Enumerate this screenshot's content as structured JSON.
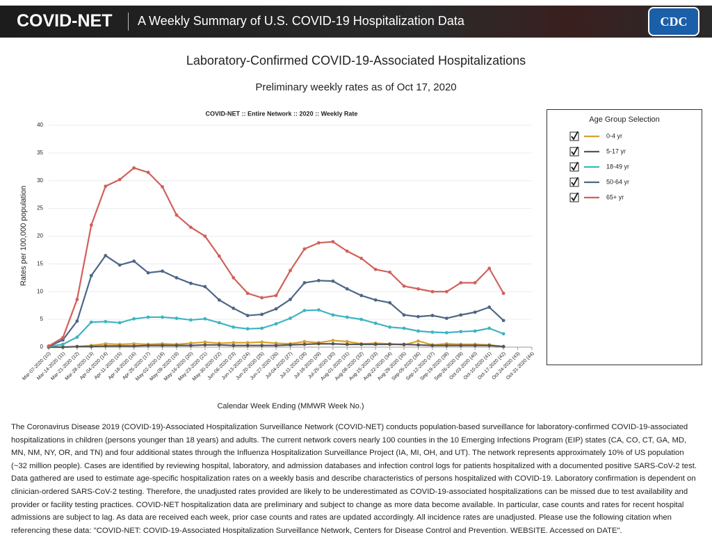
{
  "header": {
    "brand": "COVID-NET",
    "tagline": "A Weekly Summary of U.S. COVID-19 Hospitalization Data",
    "logo": "CDC"
  },
  "chart_data": {
    "type": "line",
    "title": "Laboratory-Confirmed COVID-19-Associated Hospitalizations",
    "subtitle": "Preliminary weekly rates as of Oct 17, 2020",
    "chart_title": "COVID-NET :: Entire Network :: 2020 :: Weekly Rate",
    "y_label": "Rates per 100,000 population",
    "x_label": "Calendar Week Ending (MMWR Week No.)",
    "legend_title": "Age Group Selection",
    "grid": true,
    "ylim": [
      0,
      40
    ],
    "yticks": [
      0,
      5,
      10,
      15,
      20,
      25,
      30,
      35,
      40
    ],
    "categories": [
      "Mar-07-2020 (10)",
      "Mar-14-2020 (11)",
      "Mar-21-2020 (12)",
      "Mar-28-2020 (13)",
      "Apr-04-2020 (14)",
      "Apr-11-2020 (15)",
      "Apr-18-2020 (16)",
      "Apr-25-2020 (17)",
      "May-02-2020 (18)",
      "May-09-2020 (19)",
      "May-16-2020 (20)",
      "May-23-2020 (21)",
      "May-30-2020 (22)",
      "Jun-06-2020 (23)",
      "Jun-13-2020 (24)",
      "Jun-20-2020 (25)",
      "Jun-27-2020 (26)",
      "Jul-04-2020 (27)",
      "Jul-11-2020 (28)",
      "Jul-18-2020 (29)",
      "Jul-25-2020 (30)",
      "Aug-01-2020 (31)",
      "Aug-08-2020 (32)",
      "Aug-15-2020 (33)",
      "Aug-22-2020 (34)",
      "Aug-29-2020 (35)",
      "Sep-05-2020 (36)",
      "Sep-12-2020 (37)",
      "Sep-19-2020 (38)",
      "Sep-26-2020 (39)",
      "Oct-03-2020 (40)",
      "Oct-10-2020 (41)",
      "Oct-17-2020 (42)",
      "Oct-24-2020 (43)",
      "Oct-31-2020 (44)"
    ],
    "series": [
      {
        "name": "0-4 yr",
        "color": "#d9a02c",
        "values": [
          0,
          0,
          0.1,
          0.3,
          0.6,
          0.5,
          0.6,
          0.5,
          0.6,
          0.5,
          0.7,
          0.9,
          0.7,
          0.8,
          0.8,
          0.9,
          0.7,
          0.6,
          1,
          0.8,
          1.2,
          1,
          0.6,
          0.7,
          0.6,
          0.4,
          1.1,
          0.4,
          0.6,
          0.5,
          0.5,
          0.4,
          0.1,
          null,
          null
        ]
      },
      {
        "name": "5-17 yr",
        "color": "#555555",
        "values": [
          0,
          0,
          0.1,
          0.1,
          0.2,
          0.2,
          0.2,
          0.3,
          0.3,
          0.3,
          0.3,
          0.4,
          0.4,
          0.3,
          0.3,
          0.3,
          0.3,
          0.4,
          0.5,
          0.6,
          0.6,
          0.5,
          0.5,
          0.5,
          0.5,
          0.5,
          0.4,
          0.3,
          0.3,
          0.3,
          0.3,
          0.3,
          0.1,
          null,
          null
        ]
      },
      {
        "name": "18-49 yr",
        "color": "#3db4c4",
        "values": [
          0.1,
          0.5,
          1.8,
          4.5,
          4.6,
          4.4,
          5.1,
          5.4,
          5.4,
          5.2,
          4.9,
          5.1,
          4.4,
          3.6,
          3.3,
          3.4,
          4.2,
          5.2,
          6.6,
          6.7,
          5.8,
          5.4,
          5,
          4.3,
          3.6,
          3.4,
          2.9,
          2.7,
          2.6,
          2.8,
          2.9,
          3.4,
          2.4,
          null,
          null
        ]
      },
      {
        "name": "50-64 yr",
        "color": "#4e6686",
        "values": [
          0.1,
          1.3,
          4.7,
          12.9,
          16.5,
          14.8,
          15.5,
          13.4,
          13.7,
          12.5,
          11.5,
          10.9,
          8.5,
          7,
          5.7,
          5.9,
          6.9,
          8.6,
          11.6,
          12,
          11.9,
          10.5,
          9.3,
          8.5,
          8,
          5.8,
          5.5,
          5.7,
          5.2,
          5.8,
          6.3,
          7.2,
          4.8,
          null,
          null
        ]
      },
      {
        "name": "65+ yr",
        "color": "#d1605a",
        "values": [
          0.2,
          1.7,
          8.6,
          22,
          29,
          30.2,
          32.3,
          31.5,
          28.9,
          23.8,
          21.6,
          20,
          16.4,
          12.5,
          9.7,
          8.9,
          9.3,
          13.8,
          17.7,
          18.8,
          19,
          17.3,
          16,
          14,
          13.5,
          11,
          10.5,
          10,
          10,
          11.6,
          11.6,
          14.2,
          9.7,
          null,
          null
        ]
      }
    ]
  },
  "description": "The Coronavirus Disease 2019 (COVID-19)-Associated Hospitalization Surveillance Network (COVID-NET) conducts population-based surveillance for laboratory-confirmed COVID-19-associated hospitalizations in children (persons younger than 18 years) and adults. The current network covers nearly 100 counties in the 10 Emerging Infections Program (EIP) states (CA, CO, CT, GA, MD, MN, NM, NY, OR, and TN) and four additional states through the Influenza Hospitalization Surveillance Project (IA, MI, OH, and UT). The network represents approximately 10% of US population (~32 million people). Cases are identified by reviewing hospital, laboratory, and admission databases and infection control logs for patients hospitalized with a documented positive SARS-CoV-2 test. Data gathered are used to estimate age-specific hospitalization rates on a weekly basis and describe characteristics of persons hospitalized with COVID-19. Laboratory confirmation is dependent on clinician-ordered SARS-CoV-2 testing. Therefore, the unadjusted rates provided are likely to be underestimated as COVID-19-associated hospitalizations can be missed due to test availability and provider or facility testing practices. COVID-NET hospitalization data are preliminary and subject to change as more data become available. In particular, case counts and rates for recent hospital admissions are subject to lag. As data are received each week, prior case counts and rates are updated accordingly. All incidence rates are unadjusted. Please use the following citation when referencing these data: \"COVID-NET: COVID-19-Associated Hospitalization Surveillance Network, Centers for Disease Control and Prevention. WEBSITE. Accessed on DATE\"."
}
